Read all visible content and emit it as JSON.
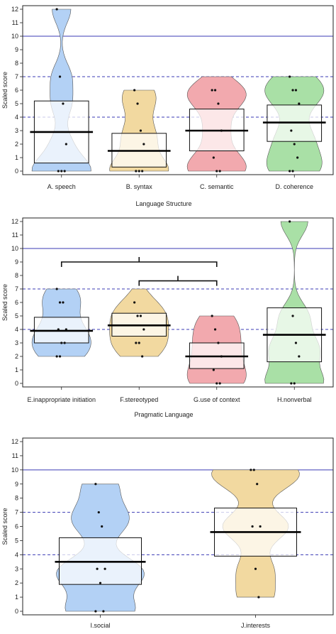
{
  "chart_data": [
    {
      "type": "box",
      "xlabel": "Language Structure",
      "ylabel": "Scaled score",
      "ylim": [
        0,
        12
      ],
      "yticks": [
        0,
        1,
        2,
        3,
        4,
        5,
        6,
        7,
        8,
        9,
        10,
        11,
        12
      ],
      "reference_lines": [
        {
          "y": 10,
          "style": "solid",
          "color": "#3b3bb5"
        },
        {
          "y": 7,
          "style": "dashed",
          "color": "#3b3bb5"
        },
        {
          "y": 4,
          "style": "dashed",
          "color": "#3b3bb5"
        }
      ],
      "categories": [
        {
          "label": "A. speech",
          "color": "#b3d1f5",
          "mean": 2.9,
          "box": [
            0.6,
            5.2
          ],
          "range": [
            0,
            12
          ],
          "points": [
            12,
            7,
            5,
            2,
            0,
            0,
            0
          ]
        },
        {
          "label": "B. syntax",
          "color": "#f2d9a0",
          "mean": 1.5,
          "box": [
            0.3,
            2.8
          ],
          "range": [
            0,
            6
          ],
          "points": [
            6,
            5,
            3,
            2,
            0,
            0,
            0
          ]
        },
        {
          "label": "C. semantic",
          "color": "#f2a9ae",
          "mean": 3.0,
          "box": [
            1.5,
            4.6
          ],
          "range": [
            0,
            7
          ],
          "points": [
            6,
            6,
            5,
            3,
            1,
            0,
            0
          ]
        },
        {
          "label": "D. coherence",
          "color": "#a9e0a6",
          "mean": 3.6,
          "box": [
            2.2,
            4.9
          ],
          "range": [
            0,
            7
          ],
          "points": [
            7,
            6,
            6,
            5,
            3,
            2,
            1,
            0,
            0
          ]
        }
      ]
    },
    {
      "type": "box",
      "xlabel": "Pragmatic Language",
      "ylabel": "Scaled score",
      "ylim": [
        0,
        12
      ],
      "yticks": [
        0,
        1,
        2,
        3,
        4,
        5,
        6,
        7,
        8,
        9,
        10,
        11,
        12
      ],
      "reference_lines": [
        {
          "y": 10,
          "style": "solid",
          "color": "#3b3bb5"
        },
        {
          "y": 7,
          "style": "dashed",
          "color": "#3b3bb5"
        },
        {
          "y": 4,
          "style": "dashed",
          "color": "#3b3bb5"
        }
      ],
      "categories": [
        {
          "label": "E.inappropriate initiation",
          "color": "#b3d1f5",
          "mean": 3.9,
          "box": [
            3.0,
            4.9
          ],
          "range": [
            2,
            7
          ],
          "points": [
            7,
            6,
            6,
            4,
            4,
            3,
            3,
            2,
            2
          ]
        },
        {
          "label": "F.stereotyped",
          "color": "#f2d9a0",
          "mean": 4.3,
          "box": [
            3.5,
            5.2
          ],
          "range": [
            2,
            7
          ],
          "points": [
            6,
            5,
            5,
            4,
            3,
            3,
            2
          ]
        },
        {
          "label": "G.use of context",
          "color": "#f2a9ae",
          "mean": 2.0,
          "box": [
            1.1,
            3.0
          ],
          "range": [
            0,
            5
          ],
          "points": [
            5,
            4,
            3,
            2,
            1,
            0,
            0
          ]
        },
        {
          "label": "H.nonverbal",
          "color": "#a9e0a6",
          "mean": 3.6,
          "box": [
            1.6,
            5.6
          ],
          "range": [
            0,
            12
          ],
          "points": [
            12,
            5,
            3,
            2,
            0,
            0
          ]
        }
      ],
      "brackets": [
        {
          "from": 0,
          "to": 2,
          "y": 9.0
        },
        {
          "from": 1,
          "to": 2,
          "y": 7.6
        }
      ]
    },
    {
      "type": "box",
      "xlabel": "",
      "ylabel": "Scaled score",
      "ylim": [
        0,
        12
      ],
      "yticks": [
        0,
        1,
        2,
        3,
        4,
        5,
        6,
        7,
        8,
        9,
        10,
        11,
        12
      ],
      "reference_lines": [
        {
          "y": 10,
          "style": "solid",
          "color": "#3b3bb5"
        },
        {
          "y": 7,
          "style": "dashed",
          "color": "#3b3bb5"
        },
        {
          "y": 4,
          "style": "dashed",
          "color": "#3b3bb5"
        }
      ],
      "categories": [
        {
          "label": "I.social",
          "color": "#b3d1f5",
          "mean": 3.5,
          "box": [
            1.9,
            5.2
          ],
          "range": [
            0,
            9
          ],
          "points": [
            9,
            7,
            6,
            3,
            3,
            2,
            0,
            0
          ]
        },
        {
          "label": "J.interests",
          "color": "#f2d9a0",
          "mean": 5.6,
          "box": [
            3.9,
            7.3
          ],
          "range": [
            1,
            10
          ],
          "points": [
            10,
            10,
            9,
            6,
            6,
            3,
            1
          ]
        }
      ]
    }
  ]
}
